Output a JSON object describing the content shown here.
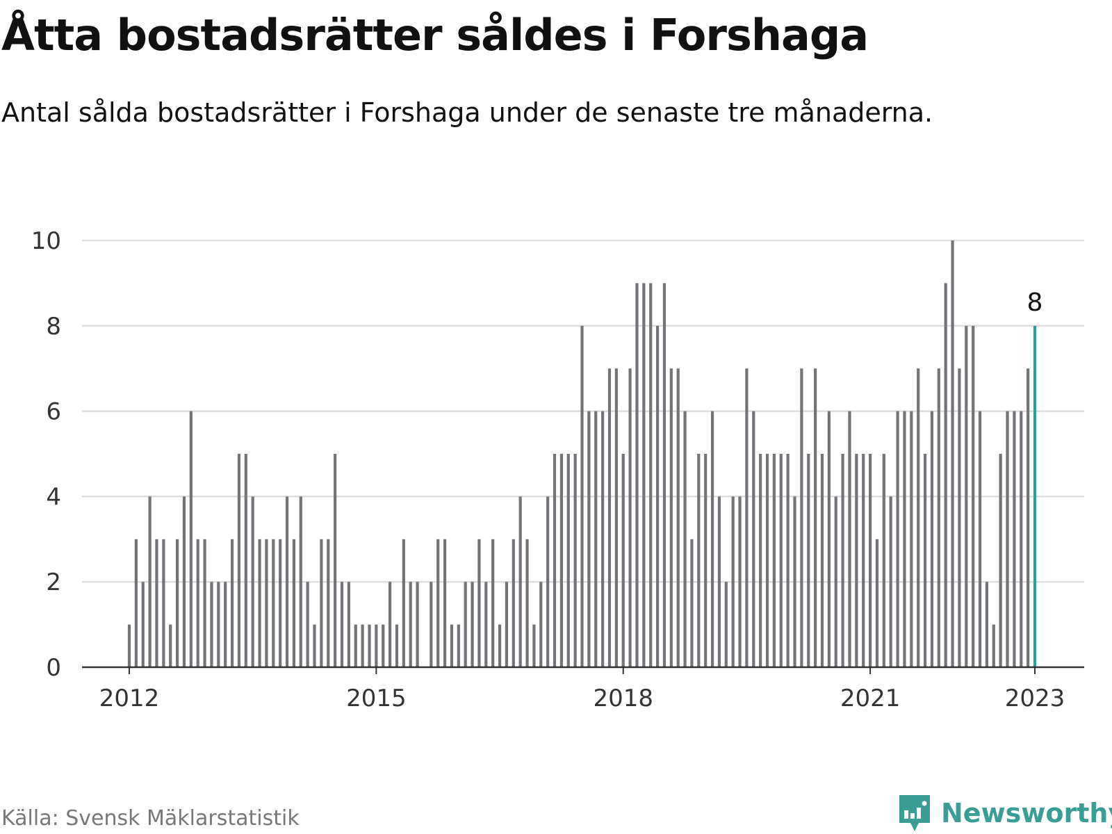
{
  "title": "Åtta bostadsrätter såldes i Forshaga",
  "subtitle": "Antal sålda bostadsrätter i Forshaga under de senaste tre månaderna.",
  "source": "Källa: Svensk Mäklarstatistik",
  "brand": {
    "name": "Newsworthy",
    "icon": "newsworthy-chart-bubble-icon"
  },
  "colors": {
    "bar": "#737378",
    "highlight": "#24a39b",
    "grid": "#dddddd",
    "axis": "#333333",
    "brand": "#3a9e96"
  },
  "chart_data": {
    "type": "bar",
    "x_ticks": [
      "2012",
      "2015",
      "2018",
      "2021",
      "2023"
    ],
    "ylim": [
      0,
      10
    ],
    "y_ticks": [
      0,
      2,
      4,
      6,
      8,
      10
    ],
    "grid": true,
    "highlight_label": "8",
    "series": [
      {
        "values": [
          1,
          3,
          2,
          4,
          3,
          3,
          1,
          3,
          4,
          6,
          3,
          3,
          2,
          2,
          2,
          3,
          5,
          5,
          4,
          3,
          3,
          3,
          3,
          4,
          3,
          4,
          2,
          1,
          3,
          3,
          5,
          2,
          2,
          1,
          1,
          1,
          1,
          1,
          2,
          1,
          3,
          2,
          2,
          0,
          2,
          3,
          3,
          1,
          1,
          2,
          2,
          3,
          2,
          3,
          1,
          2,
          3,
          4,
          3,
          1,
          2,
          4,
          5,
          5,
          5,
          5,
          8,
          6,
          6,
          6,
          7,
          7,
          5,
          7,
          9,
          9,
          9,
          8,
          9,
          7,
          7,
          6,
          3,
          5,
          5,
          6,
          4,
          2,
          4,
          4,
          7,
          6,
          5,
          5,
          5,
          5,
          5,
          4,
          7,
          5,
          7,
          5,
          6,
          4,
          5,
          6,
          5,
          5,
          5,
          3,
          5,
          4,
          6,
          6,
          6,
          7,
          5,
          6,
          7,
          9,
          10,
          7,
          8,
          8,
          6,
          2,
          1,
          5,
          6,
          6,
          6,
          7,
          8
        ]
      }
    ]
  }
}
